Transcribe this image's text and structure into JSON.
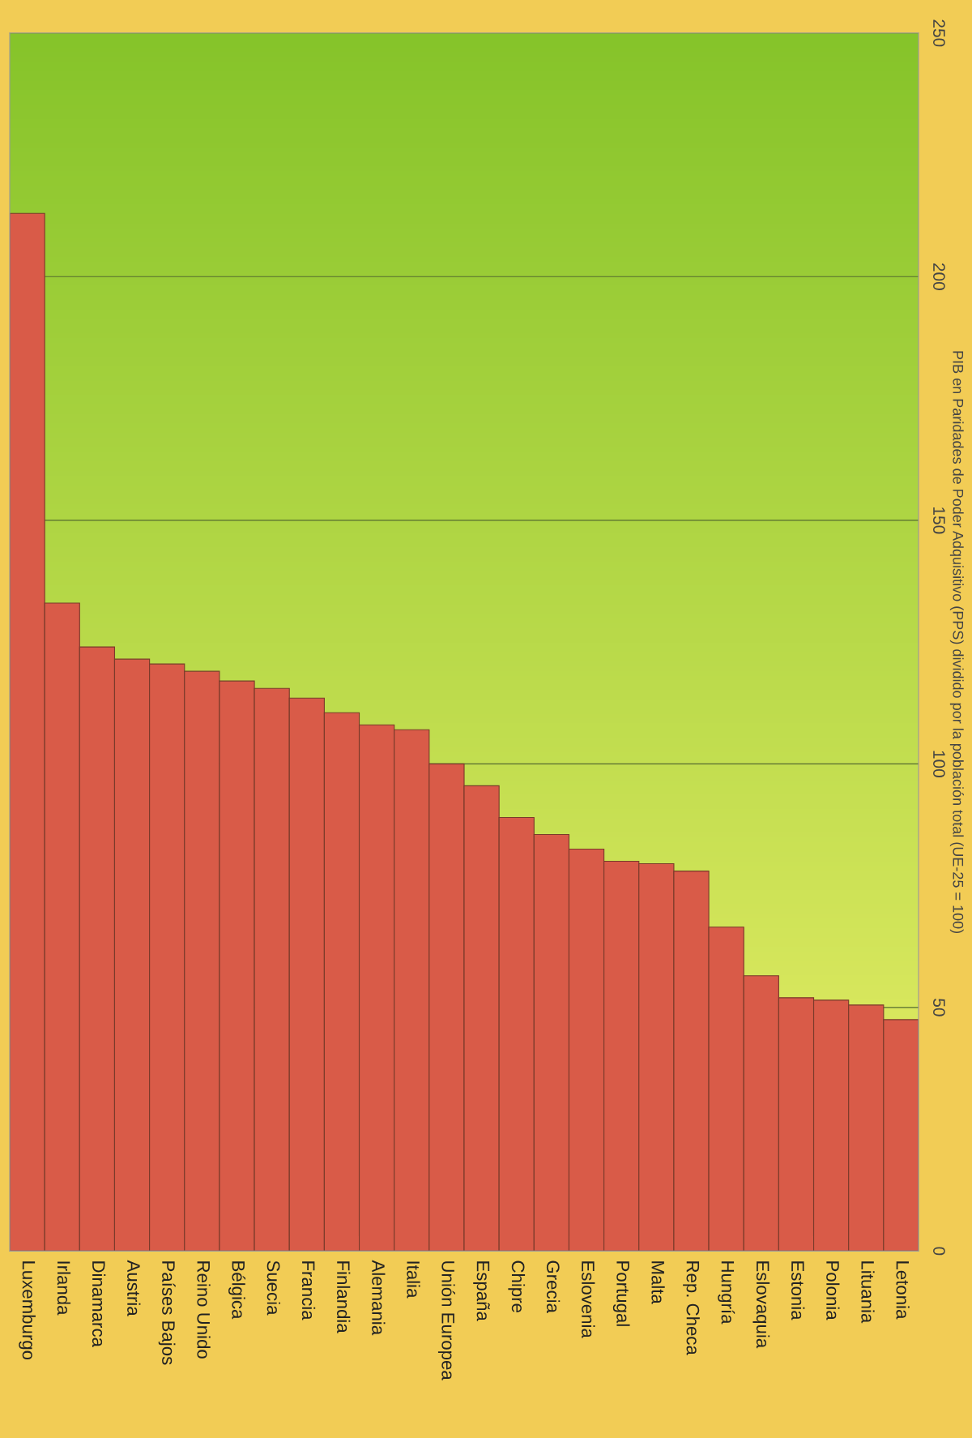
{
  "chart_data": {
    "type": "bar",
    "ylabel": "PIB en Paridades de Poder Adquisitivo (PPS) dividido por la población total (UE-25 = 100)",
    "categories": [
      "Luxemburgo",
      "Irlanda",
      "Dinamarca",
      "Austria",
      "Países Bajos",
      "Reino Unido",
      "Bélgica",
      "Suecia",
      "Francia",
      "Finlandia",
      "Alemania",
      "Italia",
      "Unión Europea",
      "España",
      "Chipre",
      "Grecia",
      "Eslovenia",
      "Portugal",
      "Malta",
      "Rep. Checa",
      "Hungría",
      "Eslovaquia",
      "Estonia",
      "Polonia",
      "Lituania",
      "Letonia"
    ],
    "values": [
      213,
      133,
      124,
      121.5,
      120.5,
      119,
      117,
      115.5,
      113.5,
      110.5,
      108,
      107,
      100,
      95.5,
      89,
      85.5,
      82.5,
      80,
      79.5,
      78,
      66.5,
      56.5,
      52,
      51.5,
      50.5,
      47.5
    ],
    "color": "#d95b48",
    "ylim": [
      0,
      250
    ],
    "yticks": [
      0,
      50,
      100,
      150,
      200,
      250
    ],
    "grid": "y"
  }
}
